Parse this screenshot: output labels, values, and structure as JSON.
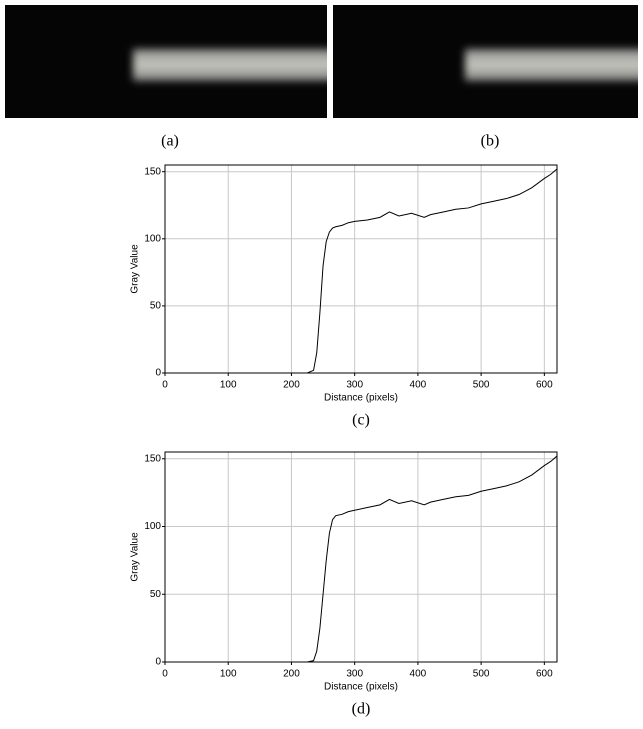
{
  "figure": {
    "panels": [
      {
        "caption": "(a)"
      },
      {
        "caption": "(b)"
      }
    ]
  },
  "chart_data": [
    {
      "type": "line",
      "caption": "(c)",
      "xlabel": "Distance (pixels)",
      "ylabel": "Gray Value",
      "x": [
        0,
        50,
        100,
        150,
        200,
        225,
        235,
        240,
        245,
        250,
        255,
        260,
        265,
        270,
        280,
        290,
        300,
        320,
        340,
        355,
        370,
        390,
        410,
        420,
        440,
        460,
        480,
        500,
        520,
        540,
        560,
        580,
        600,
        610,
        620
      ],
      "series": [
        {
          "color": "#000000",
          "values": [
            0,
            0,
            0,
            0,
            0,
            0,
            2,
            15,
            45,
            80,
            98,
            105,
            108,
            109,
            110,
            112,
            113,
            114,
            116,
            120,
            117,
            119,
            116,
            118,
            120,
            122,
            123,
            126,
            128,
            130,
            133,
            138,
            145,
            148,
            152
          ]
        }
      ],
      "xlim": [
        0,
        620
      ],
      "xticks": [
        0,
        100,
        200,
        300,
        400,
        500,
        600
      ],
      "ylim": [
        0,
        155
      ],
      "yticks": [
        0,
        50,
        100,
        150
      ],
      "grid": true
    },
    {
      "type": "line",
      "caption": "(d)",
      "xlabel": "Distance (pixels)",
      "ylabel": "Gray Value",
      "x": [
        0,
        50,
        100,
        150,
        200,
        225,
        235,
        240,
        245,
        250,
        255,
        260,
        265,
        270,
        280,
        290,
        300,
        320,
        340,
        355,
        370,
        390,
        410,
        420,
        440,
        460,
        480,
        500,
        520,
        540,
        560,
        580,
        600,
        610,
        620
      ],
      "series": [
        {
          "color": "#000000",
          "values": [
            0,
            0,
            0,
            0,
            0,
            0,
            1,
            8,
            25,
            50,
            75,
            95,
            105,
            108,
            109,
            111,
            112,
            114,
            116,
            120,
            117,
            119,
            116,
            118,
            120,
            122,
            123,
            126,
            128,
            130,
            133,
            138,
            145,
            148,
            152
          ]
        }
      ],
      "xlim": [
        0,
        620
      ],
      "xticks": [
        0,
        100,
        200,
        300,
        400,
        500,
        600
      ],
      "ylim": [
        0,
        155
      ],
      "yticks": [
        0,
        50,
        100,
        150
      ],
      "grid": true
    }
  ]
}
